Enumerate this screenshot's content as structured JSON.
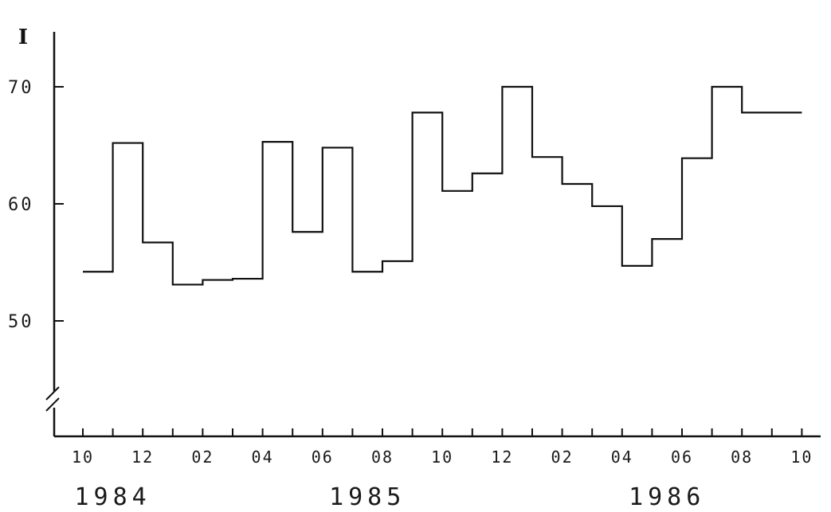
{
  "chart_data": {
    "type": "line",
    "step": true,
    "ylabel": "I",
    "ylim": [
      45,
      75
    ],
    "ytick_values": [
      50,
      60,
      70
    ],
    "ytick_labels": [
      "50",
      "60",
      "70"
    ],
    "axis_break": true,
    "grid": false,
    "x_months": [
      "1984-10",
      "1984-11",
      "1984-12",
      "1985-01",
      "1985-02",
      "1985-03",
      "1985-04",
      "1985-05",
      "1985-06",
      "1985-07",
      "1985-08",
      "1985-09",
      "1985-10",
      "1985-11",
      "1985-12",
      "1986-01",
      "1986-02",
      "1986-03",
      "1986-04",
      "1986-05",
      "1986-06",
      "1986-07",
      "1986-08",
      "1986-09",
      "1986-10"
    ],
    "xtick_labels": [
      "10",
      "12",
      "02",
      "04",
      "06",
      "08",
      "10",
      "12",
      "02",
      "04",
      "06",
      "08",
      "10"
    ],
    "year_labels": [
      "1984",
      "1985",
      "1986"
    ],
    "series": [
      {
        "values": [
          54.2,
          65.2,
          56.7,
          53.1,
          53.5,
          53.6,
          65.3,
          57.6,
          64.8,
          54.2,
          55.1,
          67.8,
          61.1,
          62.6,
          70.0,
          64.0,
          61.7,
          59.8,
          54.7,
          57.0,
          63.9,
          70.0,
          67.8,
          67.8
        ]
      }
    ]
  }
}
